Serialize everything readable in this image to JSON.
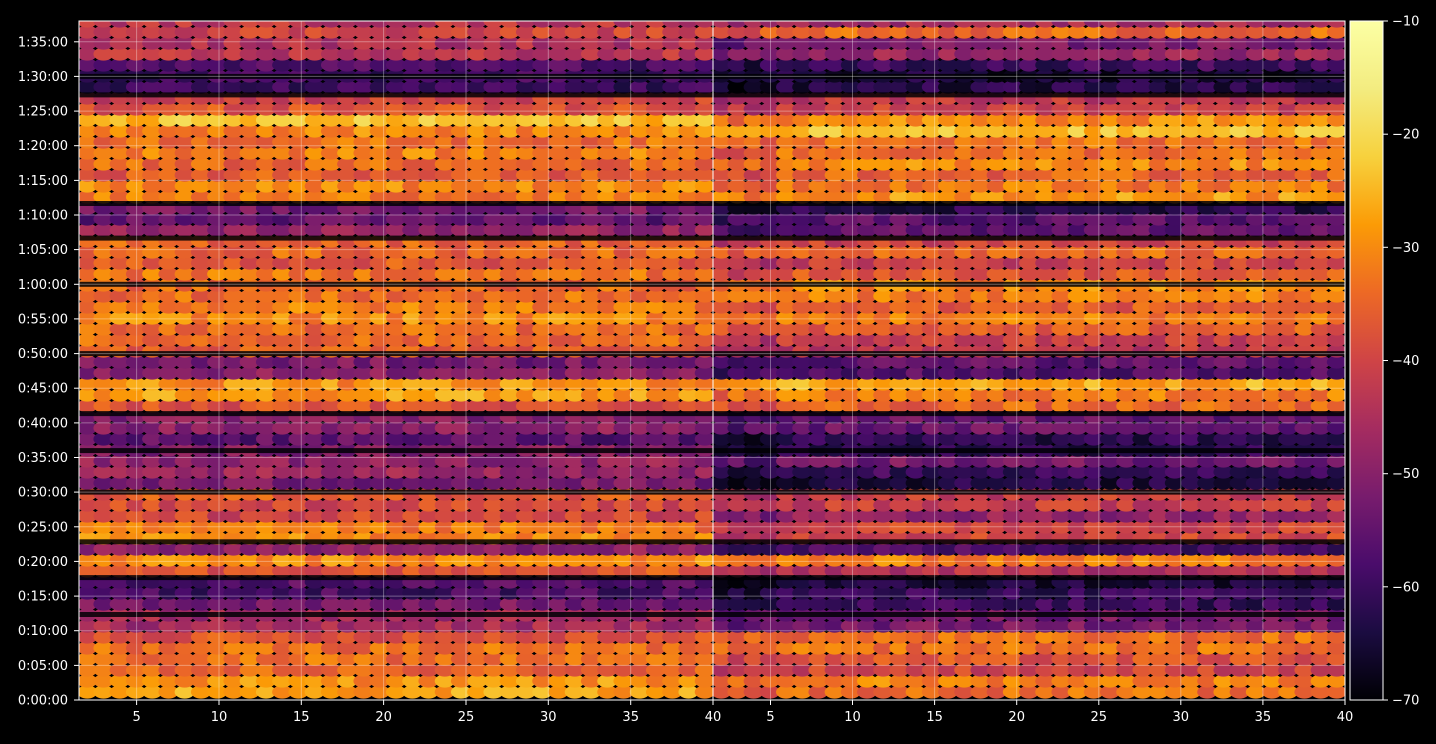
{
  "chart_data": {
    "type": "heatmap",
    "title": "",
    "xlabel": "",
    "ylabel": "",
    "panels": [
      {
        "name": "",
        "xlim": [
          1.5,
          40
        ],
        "x_ticks": [
          5,
          10,
          15,
          20,
          25,
          30,
          35,
          40
        ]
      },
      {
        "name": "",
        "xlim": [
          1.5,
          40
        ],
        "x_ticks": [
          5,
          10,
          15,
          20,
          25,
          30,
          35,
          40
        ]
      }
    ],
    "ylim_seconds": [
      0,
      5880
    ],
    "y_ticks": [
      "0:00:00",
      "0:05:00",
      "0:10:00",
      "0:15:00",
      "0:20:00",
      "0:25:00",
      "0:30:00",
      "0:35:00",
      "0:40:00",
      "0:45:00",
      "0:50:00",
      "0:55:00",
      "1:00:00",
      "1:05:00",
      "1:10:00",
      "1:15:00",
      "1:20:00",
      "1:25:00",
      "1:30:00",
      "1:35:00"
    ],
    "colorbar": {
      "colormap": "inferno",
      "range": [
        -70,
        -10
      ],
      "ticks": [
        "−10",
        "−20",
        "−30",
        "−40",
        "−50",
        "−60",
        "−70"
      ],
      "tick_values": [
        -10,
        -20,
        -30,
        -40,
        -50,
        -60,
        -70
      ]
    },
    "grid": true,
    "bands": [
      {
        "t0": 0,
        "t1": 190,
        "left": -31,
        "right": -31
      },
      {
        "t0": 190,
        "t1": 380,
        "left": -36,
        "right": -37
      },
      {
        "t0": 380,
        "t1": 560,
        "left": -35,
        "right": -36
      },
      {
        "t0": 560,
        "t1": 740,
        "left": -46,
        "right": -50
      },
      {
        "t0": 740,
        "t1": 900,
        "left": -52,
        "right": -58
      },
      {
        "t0": 900,
        "t1": 1060,
        "left": -58,
        "right": -64
      },
      {
        "t0": 1060,
        "t1": 1170,
        "left": -40,
        "right": -42
      },
      {
        "t0": 1170,
        "t1": 1270,
        "left": -33,
        "right": -34
      },
      {
        "t0": 1270,
        "t1": 1370,
        "left": -48,
        "right": -55
      },
      {
        "t0": 1370,
        "t1": 1500,
        "left": -34,
        "right": -36
      },
      {
        "t0": 1500,
        "t1": 1640,
        "left": -42,
        "right": -45
      },
      {
        "t0": 1640,
        "t1": 1800,
        "left": -39,
        "right": -44
      },
      {
        "t0": 1800,
        "t1": 2000,
        "left": -52,
        "right": -60
      },
      {
        "t0": 2000,
        "t1": 2160,
        "left": -46,
        "right": -52
      },
      {
        "t0": 2160,
        "t1": 2300,
        "left": -54,
        "right": -60
      },
      {
        "t0": 2300,
        "t1": 2480,
        "left": -48,
        "right": -54
      },
      {
        "t0": 2480,
        "t1": 2620,
        "left": -36,
        "right": -38
      },
      {
        "t0": 2620,
        "t1": 2800,
        "left": -28,
        "right": -30
      },
      {
        "t0": 2800,
        "t1": 3000,
        "left": -52,
        "right": -56
      },
      {
        "t0": 3000,
        "t1": 3200,
        "left": -38,
        "right": -40
      },
      {
        "t0": 3200,
        "t1": 3400,
        "left": -33,
        "right": -35
      },
      {
        "t0": 3400,
        "t1": 3600,
        "left": -32,
        "right": -34
      },
      {
        "t0": 3600,
        "t1": 3700,
        "left": -36,
        "right": -38
      },
      {
        "t0": 3700,
        "t1": 3820,
        "left": -35,
        "right": -37
      },
      {
        "t0": 3820,
        "t1": 4000,
        "left": -36,
        "right": -37
      },
      {
        "t0": 4000,
        "t1": 4120,
        "left": -50,
        "right": -53
      },
      {
        "t0": 4120,
        "t1": 4300,
        "left": -56,
        "right": -60
      },
      {
        "t0": 4300,
        "t1": 4500,
        "left": -30,
        "right": -31
      },
      {
        "t0": 4500,
        "t1": 4700,
        "left": -33,
        "right": -34
      },
      {
        "t0": 4700,
        "t1": 4880,
        "left": -30,
        "right": -31
      },
      {
        "t0": 4880,
        "t1": 5060,
        "left": -27,
        "right": -28
      },
      {
        "t0": 5060,
        "t1": 5240,
        "left": -38,
        "right": -40
      },
      {
        "t0": 5240,
        "t1": 5400,
        "left": -64,
        "right": -66
      },
      {
        "t0": 5400,
        "t1": 5500,
        "left": -60,
        "right": -62
      },
      {
        "t0": 5500,
        "t1": 5640,
        "left": -44,
        "right": -46
      },
      {
        "t0": 5640,
        "t1": 5760,
        "left": -48,
        "right": -50
      },
      {
        "t0": 5760,
        "t1": 5880,
        "left": -36,
        "right": -37
      }
    ],
    "gaps": [
      740,
      1060,
      1370,
      1800,
      2160,
      2480,
      3000,
      3600,
      4000,
      4300,
      5240,
      5400
    ]
  }
}
